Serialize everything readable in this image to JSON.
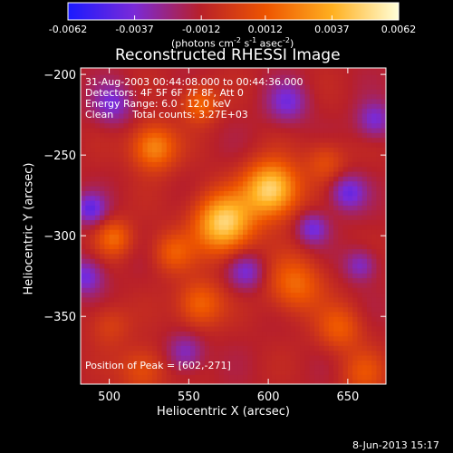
{
  "colorbar": {
    "tick_labels": [
      "-0.0062",
      "-0.0037",
      "-0.0012",
      "0.0012",
      "0.0037",
      "0.0062"
    ],
    "tick_values": [
      -0.0062,
      -0.0037,
      -0.0012,
      0.0012,
      0.0037,
      0.0062
    ],
    "range": [
      -0.0062,
      0.0062
    ],
    "unit_main": "(photons cm",
    "unit_exp1": "-2",
    "unit_mid": " s",
    "unit_exp2": "-1",
    "unit_mid2": " asec",
    "unit_exp3": "-2",
    "unit_end": ")",
    "colors": [
      "#1a1aff",
      "#7a2ad8",
      "#b8202a",
      "#ee5500",
      "#ffb020",
      "#ffffd8"
    ]
  },
  "chart_data": {
    "type": "heatmap",
    "title": "Reconstructed RHESSI Image",
    "xlabel": "Heliocentric X (arcsec)",
    "ylabel": "Heliocentric Y (arcsec)",
    "xlim": [
      482,
      674
    ],
    "ylim": [
      -392,
      -196
    ],
    "xticks": [
      500,
      550,
      600,
      650
    ],
    "yticks": [
      -200,
      -250,
      -300,
      -350
    ],
    "xtick_labels": [
      "500",
      "550",
      "600",
      "650"
    ],
    "ytick_labels": [
      "−200",
      "−250",
      "−300",
      "−350"
    ],
    "value_range": [
      -0.0062,
      0.0062
    ],
    "sources": [
      {
        "x": 602,
        "y": -271,
        "sigma": 12,
        "amp": 0.0062
      },
      {
        "x": 572,
        "y": -292,
        "sigma": 13,
        "amp": 0.006
      },
      {
        "x": 528,
        "y": -245,
        "sigma": 10,
        "amp": 0.004
      },
      {
        "x": 503,
        "y": -301,
        "sigma": 8,
        "amp": 0.0028
      },
      {
        "x": 557,
        "y": -218,
        "sigma": 8,
        "amp": 0.003
      },
      {
        "x": 617,
        "y": -330,
        "sigma": 12,
        "amp": 0.003
      },
      {
        "x": 557,
        "y": -342,
        "sigma": 10,
        "amp": 0.003
      },
      {
        "x": 645,
        "y": -357,
        "sigma": 10,
        "amp": 0.0024
      },
      {
        "x": 660,
        "y": -385,
        "sigma": 10,
        "amp": 0.002
      },
      {
        "x": 540,
        "y": -310,
        "sigma": 9,
        "amp": 0.0024
      },
      {
        "x": 521,
        "y": -383,
        "sigma": 10,
        "amp": 0.0022
      },
      {
        "x": 636,
        "y": -254,
        "sigma": 9,
        "amp": 0.002
      },
      {
        "x": 500,
        "y": -355,
        "sigma": 9,
        "amp": 0.0015
      }
    ],
    "negative_spots": [
      {
        "x": 488,
        "y": -283,
        "sigma": 7,
        "amp": -0.003
      },
      {
        "x": 650,
        "y": -273,
        "sigma": 8,
        "amp": -0.003
      },
      {
        "x": 628,
        "y": -295,
        "sigma": 7,
        "amp": -0.0028
      },
      {
        "x": 667,
        "y": -228,
        "sigma": 8,
        "amp": -0.0026
      },
      {
        "x": 586,
        "y": -322,
        "sigma": 8,
        "amp": -0.0026
      },
      {
        "x": 485,
        "y": -325,
        "sigma": 8,
        "amp": -0.0028
      },
      {
        "x": 612,
        "y": -217,
        "sigma": 9,
        "amp": -0.0025
      },
      {
        "x": 502,
        "y": -218,
        "sigma": 9,
        "amp": -0.0025
      },
      {
        "x": 548,
        "y": -372,
        "sigma": 8,
        "amp": -0.0024
      },
      {
        "x": 658,
        "y": -318,
        "sigma": 7,
        "amp": -0.0024
      }
    ],
    "annotations": {
      "time": "31-Aug-2003 00:44:08.000 to 00:44:36.000",
      "detectors": "Detectors: 4F 5F 6F 7F 8F, Att 0",
      "energy": "Energy Range: 6.0 - 12.0 keV",
      "algorithm": "Clean",
      "counts": "Total counts: 3.27E+03",
      "peak": "Position of Peak = [602,-271]"
    }
  },
  "footer": {
    "date": "8-Jun-2013 15:17"
  }
}
